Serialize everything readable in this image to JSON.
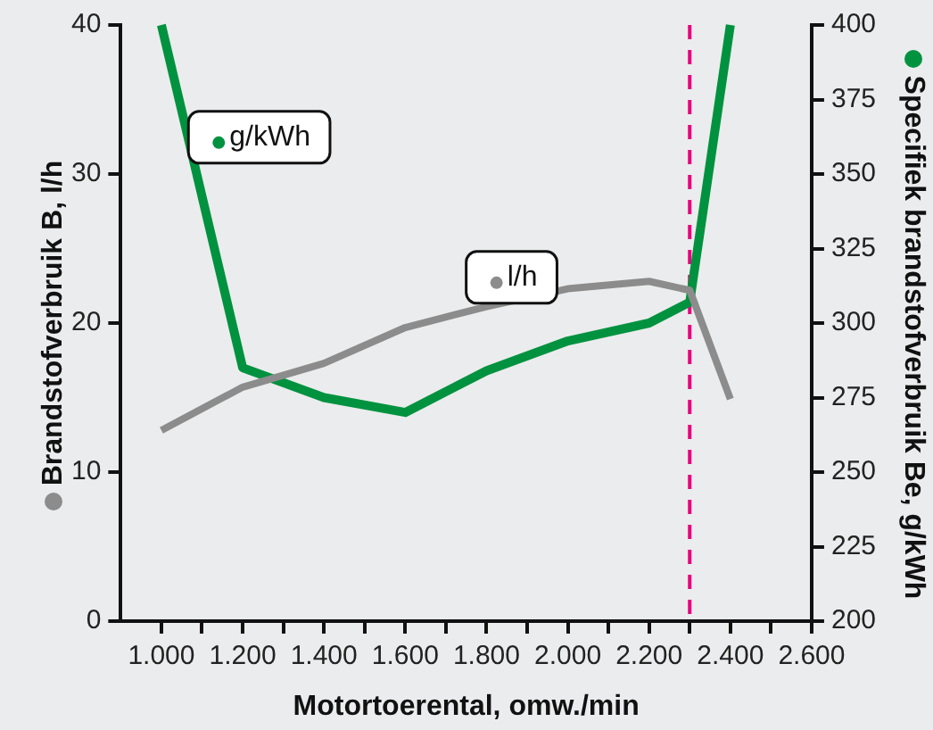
{
  "chart_data": {
    "type": "line",
    "xlabel": "Motortoerental, omw./min",
    "ylabel": "Brandstofverbruik B, l/h",
    "y2label": "Specifiek brandstofverbruik Be, g/kWh",
    "x": [
      1000,
      1200,
      1400,
      1600,
      1800,
      2000,
      2200,
      2300,
      2400
    ],
    "series": [
      {
        "name": "l/h",
        "color": "#8c8c8c",
        "values": [
          12.8,
          15.7,
          17.3,
          19.7,
          21.1,
          22.3,
          22.8,
          22.2,
          14.9
        ]
      },
      {
        "name": "g/kWh",
        "color": "#00923f",
        "axis": "y2",
        "values": [
          400,
          285,
          275,
          270,
          284,
          294,
          300,
          307,
          400
        ]
      }
    ],
    "xlim": [
      900,
      2600
    ],
    "xticks": [
      {
        "value": 1000,
        "label": "1.000"
      },
      {
        "value": 1100,
        "label": null
      },
      {
        "value": 1200,
        "label": "1.200"
      },
      {
        "value": 1300,
        "label": null
      },
      {
        "value": 1400,
        "label": "1.400"
      },
      {
        "value": 1500,
        "label": null
      },
      {
        "value": 1600,
        "label": "1.600"
      },
      {
        "value": 1700,
        "label": null
      },
      {
        "value": 1800,
        "label": "1.800"
      },
      {
        "value": 1900,
        "label": null
      },
      {
        "value": 2000,
        "label": "2.000"
      },
      {
        "value": 2100,
        "label": null
      },
      {
        "value": 2200,
        "label": "2.200"
      },
      {
        "value": 2300,
        "label": null
      },
      {
        "value": 2400,
        "label": "2.400"
      },
      {
        "value": 2500,
        "label": null
      },
      {
        "value": 2600,
        "label": "2.600"
      }
    ],
    "ylim": [
      0,
      40
    ],
    "yticks": [
      0,
      10,
      20,
      30,
      40
    ],
    "y2lim": [
      200,
      400
    ],
    "y2ticks": [
      200,
      225,
      250,
      275,
      300,
      325,
      350,
      375,
      400
    ],
    "ref_lines": [
      {
        "axis": "x",
        "value": 2300,
        "color": "#e6007e",
        "line_style": "dashed"
      }
    ],
    "grid": false,
    "legend": "top left",
    "marker": "none",
    "line_style": "solid"
  }
}
